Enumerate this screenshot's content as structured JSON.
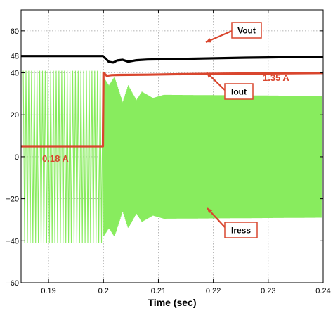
{
  "chart_data": {
    "type": "line",
    "title": "",
    "xlabel": "Time (sec)",
    "ylabel": "",
    "xlim": [
      0.185,
      0.24
    ],
    "ylim": [
      -60,
      70
    ],
    "xticks": [
      0.19,
      0.2,
      0.21,
      0.22,
      0.23,
      0.24
    ],
    "xtick_labels": [
      "0.19",
      "0.2",
      "0.21",
      "0.22",
      "0.23",
      "0.24"
    ],
    "yticks": [
      -60,
      -40,
      -20,
      0,
      20,
      40,
      48,
      60
    ],
    "ytick_labels": [
      "−60",
      "−40",
      "−20",
      "0",
      "20",
      "40",
      "48",
      "60"
    ],
    "grid": true,
    "step_time": 0.2,
    "series": [
      {
        "name": "Vout",
        "color": "#000000",
        "points": [
          [
            0.185,
            48
          ],
          [
            0.1999,
            48
          ],
          [
            0.2005,
            46.5
          ],
          [
            0.201,
            45.2
          ],
          [
            0.2018,
            44.9
          ],
          [
            0.2025,
            45.9
          ],
          [
            0.2035,
            46.2
          ],
          [
            0.2045,
            45.3
          ],
          [
            0.206,
            46.0
          ],
          [
            0.208,
            46.3
          ],
          [
            0.212,
            46.5
          ],
          [
            0.218,
            46.8
          ],
          [
            0.226,
            47.2
          ],
          [
            0.234,
            47.5
          ],
          [
            0.24,
            47.6
          ]
        ]
      },
      {
        "name": "Iout",
        "color": "#d9462e",
        "points": [
          [
            0.185,
            5
          ],
          [
            0.1999,
            5
          ],
          [
            0.2,
            40
          ],
          [
            0.2006,
            38.6
          ],
          [
            0.2015,
            38.9
          ],
          [
            0.203,
            39.0
          ],
          [
            0.208,
            39.1
          ],
          [
            0.215,
            39.4
          ],
          [
            0.222,
            39.6
          ],
          [
            0.23,
            39.7
          ],
          [
            0.24,
            39.9
          ]
        ]
      },
      {
        "name": "Iress",
        "color": "#88ec5e",
        "before_step": {
          "amplitude": 41,
          "period": 0.0005
        },
        "after_step": {
          "envelope": [
            [
              0.2,
              38
            ],
            [
              0.201,
              34
            ],
            [
              0.202,
              38
            ],
            [
              0.2035,
              26
            ],
            [
              0.2045,
              34
            ],
            [
              0.206,
              27
            ],
            [
              0.207,
              31
            ],
            [
              0.209,
              28
            ],
            [
              0.211,
              29.5
            ],
            [
              0.24,
              29
            ]
          ],
          "period": 0.0001
        }
      }
    ],
    "annotations": [
      {
        "text": "Vout",
        "type": "box"
      },
      {
        "text": "Iout",
        "type": "box"
      },
      {
        "text": "Iress",
        "type": "box"
      },
      {
        "text": "1.35 A",
        "type": "label"
      },
      {
        "text": "0.18 A",
        "type": "label"
      }
    ]
  }
}
